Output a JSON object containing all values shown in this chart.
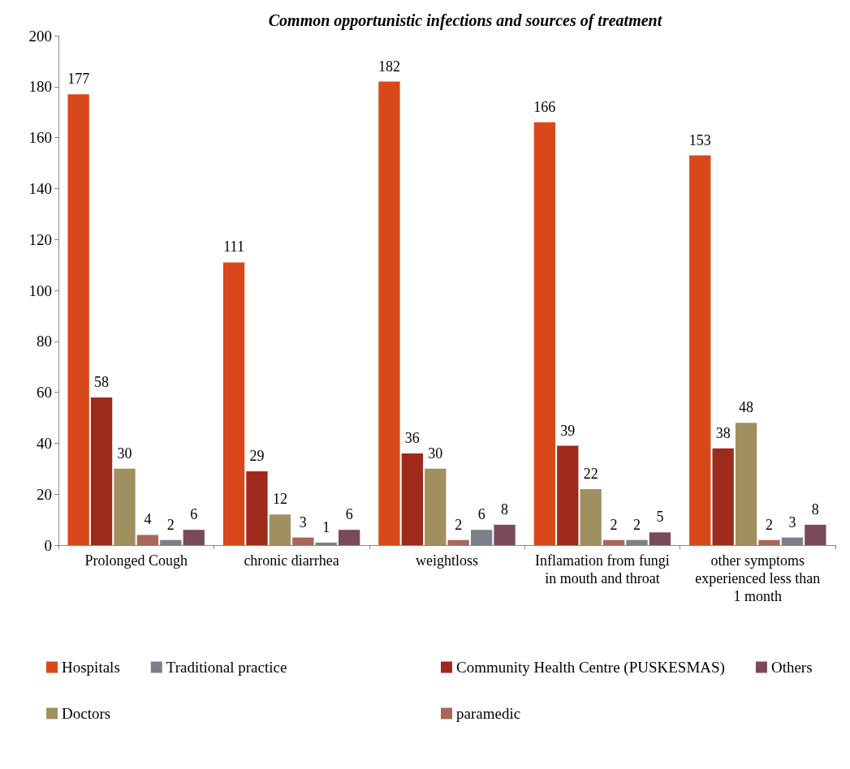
{
  "chart_data": {
    "type": "bar",
    "title": "Common opportunistic infections and sources of treatment",
    "categories": [
      "Prolonged Cough",
      "chronic diarrhea",
      "weightloss",
      "Inflamation from fungi in mouth and throat",
      "other symptoms experienced less than 1 month"
    ],
    "series": [
      {
        "name": "Hospitals",
        "color": "#d9481a",
        "values": [
          177,
          111,
          182,
          166,
          153
        ]
      },
      {
        "name": "Community Health Centre (PUSKESMAS)",
        "color": "#9e2a1c",
        "values": [
          58,
          29,
          36,
          39,
          38
        ]
      },
      {
        "name": "Doctors",
        "color": "#a09060",
        "values": [
          30,
          12,
          30,
          22,
          48
        ]
      },
      {
        "name": "paramedic",
        "color": "#a8675a",
        "values": [
          4,
          3,
          2,
          2,
          2
        ]
      },
      {
        "name": "Traditional practice",
        "color": "#7a7f8a",
        "values": [
          2,
          1,
          6,
          2,
          3
        ]
      },
      {
        "name": "Others",
        "color": "#7a4a5a",
        "values": [
          6,
          6,
          8,
          5,
          8
        ]
      }
    ],
    "ylim": [
      0,
      200
    ],
    "yticks": [
      0,
      20,
      40,
      60,
      80,
      100,
      120,
      140,
      160,
      180,
      200
    ],
    "grid": false,
    "legend": "bottom",
    "data_labels": true
  }
}
